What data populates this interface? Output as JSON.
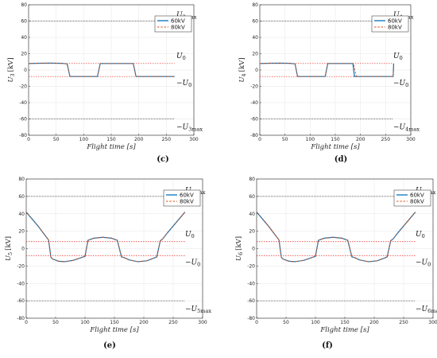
{
  "chart_data": [
    {
      "type": "line",
      "panel_label": "(c)",
      "xlabel": "Flight time [s]",
      "ylabel": "U3 [kV]",
      "ylabel_main": "U",
      "ylabel_sub": "3",
      "ylabel_unit": "[kV]",
      "xlim": [
        0,
        300
      ],
      "ylim": [
        -80,
        80
      ],
      "xticks": [
        0,
        50,
        100,
        150,
        200,
        250,
        300
      ],
      "yticks": [
        -80,
        -60,
        -40,
        -20,
        0,
        20,
        40,
        60,
        80
      ],
      "grid": true,
      "legend_position": "top-right",
      "umax": 60,
      "u0": 8,
      "x_end": 265,
      "annotations": {
        "umax": "U",
        "umax_sub": "3max",
        "u0": "U",
        "u0_sub": "0",
        "neg_u0": "−U",
        "neg_u0_sub": "0",
        "neg_umax": "−U",
        "neg_umax_sub": "3max"
      },
      "series": [
        {
          "name": "60kV",
          "color": "#0072BD",
          "dash": "",
          "x": [
            0,
            20,
            40,
            60,
            70,
            75,
            80,
            110,
            125,
            130,
            140,
            160,
            190,
            195,
            200,
            230,
            265
          ],
          "y": [
            8,
            8.3,
            8.4,
            8.2,
            7.5,
            -8,
            -8,
            -8,
            -8,
            8,
            8,
            8,
            8,
            -8,
            -8,
            -8,
            -8
          ]
        },
        {
          "name": "80kV",
          "color": "#D95319",
          "dash": "2.5,1.8",
          "x": [
            0,
            20,
            40,
            60,
            70,
            75,
            80,
            110,
            125,
            130,
            140,
            160,
            190,
            195,
            200,
            230,
            265
          ],
          "y": [
            8,
            8.3,
            8.4,
            8.2,
            7.5,
            -8,
            -8,
            -8,
            -8,
            8,
            8,
            8,
            8,
            -8,
            -8,
            -8,
            -8
          ]
        }
      ]
    },
    {
      "type": "line",
      "panel_label": "(d)",
      "xlabel": "Flight time [s]",
      "ylabel": "U4 [kV]",
      "ylabel_main": "U",
      "ylabel_sub": "4",
      "ylabel_unit": "[kV]",
      "xlim": [
        0,
        300
      ],
      "ylim": [
        -80,
        80
      ],
      "xticks": [
        0,
        50,
        100,
        150,
        200,
        250,
        300
      ],
      "yticks": [
        -80,
        -60,
        -40,
        -20,
        0,
        20,
        40,
        60,
        80
      ],
      "grid": true,
      "legend_position": "top-right",
      "umax": 60,
      "u0": 8,
      "x_end": 265,
      "annotations": {
        "umax": "U",
        "umax_sub": "4max",
        "u0": "U",
        "u0_sub": "0",
        "neg_u0": "−U",
        "neg_u0_sub": "0",
        "neg_umax": "−U",
        "neg_umax_sub": "4max"
      },
      "series": [
        {
          "name": "60kV",
          "color": "#0072BD",
          "dash": "",
          "x": [
            0,
            20,
            40,
            60,
            70,
            75,
            80,
            120,
            130,
            135,
            145,
            170,
            185,
            188,
            195,
            230,
            265,
            266
          ],
          "y": [
            8,
            8.3,
            8.4,
            8.2,
            7.5,
            -8,
            -8,
            -8,
            -8,
            8,
            8,
            8,
            8,
            -8,
            -8,
            -8,
            -8,
            8
          ]
        },
        {
          "name": "80kV",
          "color": "#D95319",
          "dash": "2.5,1.8",
          "x": [
            0,
            20,
            40,
            60,
            70,
            75,
            80,
            120,
            130,
            135,
            145,
            170,
            186,
            192,
            198,
            230,
            265,
            266
          ],
          "y": [
            8,
            8.3,
            8.4,
            8.2,
            7.5,
            -8,
            -8,
            -8,
            -8,
            8,
            8,
            8,
            8,
            -8,
            -8,
            -8,
            -8,
            8
          ]
        }
      ]
    },
    {
      "type": "line",
      "panel_label": "(e)",
      "xlabel": "Flight time [s]",
      "ylabel": "U5 [kV]",
      "ylabel_main": "U",
      "ylabel_sub": "5",
      "ylabel_unit": "[kV]",
      "xlim": [
        0,
        300
      ],
      "ylim": [
        -80,
        80
      ],
      "xticks": [
        0,
        50,
        100,
        150,
        200,
        250,
        300
      ],
      "yticks": [
        -80,
        -60,
        -40,
        -20,
        0,
        20,
        40,
        60,
        80
      ],
      "grid": true,
      "legend_position": "top-right",
      "umax": 60,
      "u0": 8,
      "x_end": 270,
      "annotations": {
        "umax": "U",
        "umax_sub": "5max",
        "u0": "U",
        "u0_sub": "0",
        "neg_u0": "−U",
        "neg_u0_sub": "0",
        "neg_umax": "−U",
        "neg_umax_sub": "5max"
      },
      "series": [
        {
          "name": "60kV",
          "color": "#0072BD",
          "dash": "",
          "x": [
            0,
            10,
            20,
            30,
            38,
            42,
            45,
            55,
            65,
            80,
            95,
            100,
            105,
            115,
            130,
            145,
            155,
            162,
            167,
            175,
            190,
            205,
            215,
            222,
            228,
            232,
            240,
            250,
            260,
            270
          ],
          "y": [
            42,
            34,
            26,
            17,
            10,
            -10,
            -12,
            -14.5,
            -15,
            -13.5,
            -10,
            -9,
            9.5,
            12,
            13,
            12,
            9.5,
            -9.5,
            -10.5,
            -13,
            -15,
            -14,
            -11.5,
            -9.5,
            9,
            11,
            18,
            26,
            34,
            42
          ]
        },
        {
          "name": "80kV",
          "color": "#D95319",
          "dash": "2.5,1.8",
          "x": [
            0,
            10,
            20,
            30,
            38,
            42,
            45,
            55,
            65,
            80,
            95,
            100,
            105,
            115,
            130,
            145,
            155,
            162,
            167,
            175,
            190,
            205,
            215,
            222,
            228,
            232,
            240,
            250,
            260,
            270
          ],
          "y": [
            42,
            34,
            26,
            17,
            10,
            -10,
            -12,
            -14.5,
            -15,
            -13.5,
            -10,
            -9,
            9.5,
            12,
            13,
            12,
            9.5,
            -9.5,
            -10.5,
            -13,
            -15,
            -14,
            -11.5,
            -9.5,
            9,
            11,
            18,
            26,
            34,
            42
          ]
        }
      ]
    },
    {
      "type": "line",
      "panel_label": "(f)",
      "xlabel": "Flight time [s]",
      "ylabel": "U6 [kV]",
      "ylabel_main": "U",
      "ylabel_sub": "6",
      "ylabel_unit": "[kV]",
      "xlim": [
        0,
        300
      ],
      "ylim": [
        -80,
        80
      ],
      "xticks": [
        0,
        50,
        100,
        150,
        200,
        250,
        300
      ],
      "yticks": [
        -80,
        -60,
        -40,
        -20,
        0,
        20,
        40,
        60,
        80
      ],
      "grid": true,
      "legend_position": "top-right",
      "umax": 60,
      "u0": 8,
      "x_end": 270,
      "annotations": {
        "umax": "U",
        "umax_sub": "6max",
        "u0": "U",
        "u0_sub": "0",
        "neg_u0": "−U",
        "neg_u0_sub": "0",
        "neg_umax": "−U",
        "neg_umax_sub": "6max"
      },
      "series": [
        {
          "name": "60kV",
          "color": "#0072BD",
          "dash": "",
          "x": [
            0,
            10,
            20,
            30,
            38,
            42,
            45,
            55,
            65,
            80,
            95,
            100,
            105,
            115,
            130,
            145,
            155,
            162,
            167,
            175,
            190,
            205,
            215,
            222,
            228,
            232,
            240,
            250,
            260,
            270
          ],
          "y": [
            42,
            34,
            26,
            17,
            10,
            -10,
            -12,
            -14.5,
            -15,
            -13.5,
            -10,
            -9,
            9.5,
            12,
            13,
            12,
            9.5,
            -9.5,
            -10.5,
            -13,
            -15,
            -14,
            -11.5,
            -9.5,
            9,
            11,
            18,
            26,
            34,
            42
          ]
        },
        {
          "name": "80kV",
          "color": "#D95319",
          "dash": "2.5,1.8",
          "x": [
            0,
            10,
            20,
            30,
            38,
            42,
            45,
            55,
            65,
            80,
            95,
            100,
            105,
            115,
            130,
            145,
            155,
            162,
            167,
            175,
            190,
            205,
            215,
            222,
            228,
            232,
            240,
            250,
            260,
            270
          ],
          "y": [
            42,
            34,
            26,
            17,
            10,
            -10,
            -12,
            -14.5,
            -15,
            -13.5,
            -10,
            -9,
            9.5,
            12,
            13,
            12,
            9.5,
            -9.5,
            -10.5,
            -13,
            -15,
            -14,
            -11.5,
            -9.5,
            9,
            11,
            18,
            26,
            34,
            42
          ]
        }
      ]
    }
  ]
}
